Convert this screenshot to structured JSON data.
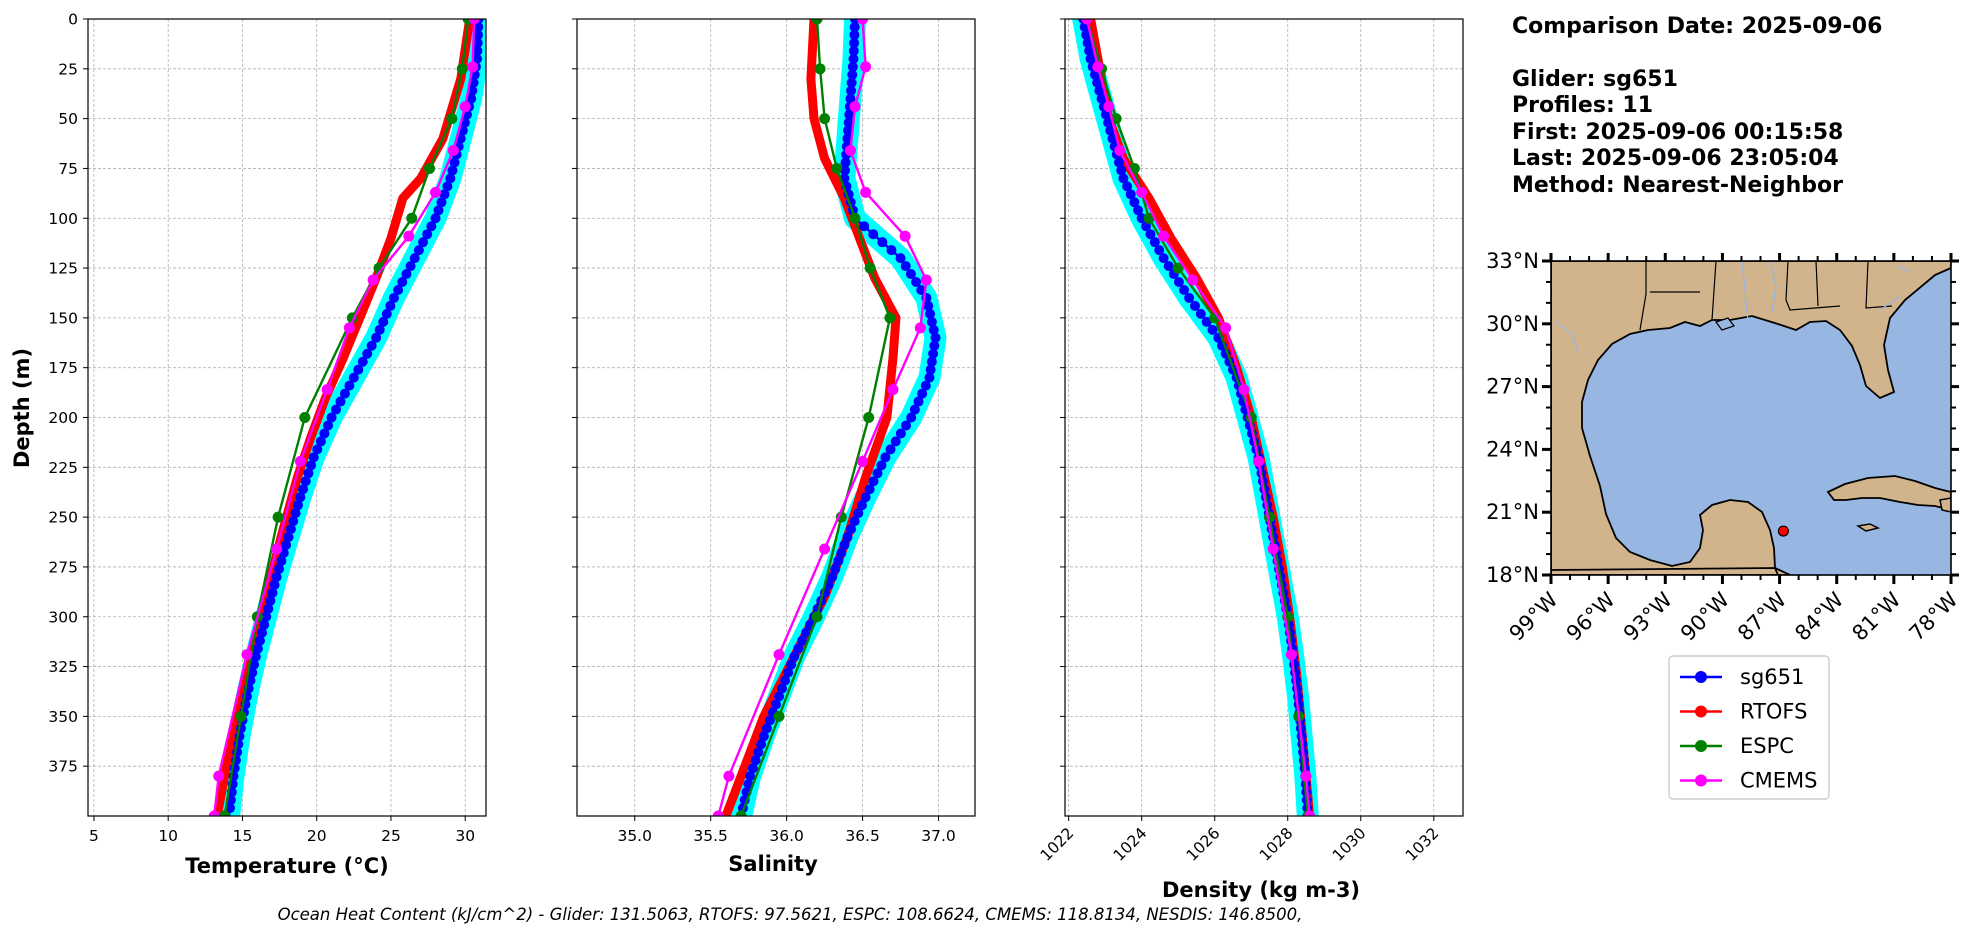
{
  "depth_axis": {
    "label": "Depth (m)",
    "ticks": [
      0,
      25,
      50,
      75,
      100,
      125,
      150,
      175,
      200,
      225,
      250,
      275,
      300,
      325,
      350,
      375
    ],
    "range": [
      0,
      400
    ]
  },
  "info": {
    "comparison_date": "Comparison Date: 2025-09-06",
    "glider": "Glider: sg651",
    "profiles": "Profiles: 11",
    "first": "First: 2025-09-06 00:15:58",
    "last": "Last: 2025-09-06 23:05:04",
    "method": "Method: Nearest-Neighbor"
  },
  "colors": {
    "glider": "#0000ff",
    "glider_band": "#00ffff",
    "rtofs": "#ff0000",
    "espc": "#008000",
    "cmems": "#ff00ff",
    "grid": "#b0b0b0",
    "land": "#d2b48c",
    "ocean": "#97b6e1"
  },
  "chart_data": [
    {
      "type": "line",
      "panel": "temperature",
      "xlabel": "Temperature (°C)",
      "ylabel": "Depth (m)",
      "xlim": [
        4.6,
        31.4
      ],
      "xticks": [
        5,
        10,
        15,
        20,
        25,
        30
      ],
      "ylim": [
        400,
        0
      ],
      "grid": true,
      "series": [
        {
          "name": "sg651",
          "depth": [
            0,
            20,
            40,
            60,
            80,
            100,
            120,
            140,
            160,
            180,
            200,
            220,
            240,
            260,
            280,
            300,
            320,
            340,
            360,
            380,
            400
          ],
          "values": [
            30.9,
            30.8,
            30.4,
            29.7,
            29.0,
            28.0,
            26.6,
            25.2,
            24.0,
            22.5,
            21.0,
            19.8,
            18.9,
            18.1,
            17.3,
            16.6,
            15.9,
            15.3,
            14.8,
            14.4,
            14.1
          ]
        },
        {
          "name": "RTOFS",
          "depth": [
            0,
            30,
            60,
            80,
            90,
            110,
            130,
            150,
            170,
            190,
            210,
            230,
            260,
            290,
            320,
            350,
            380,
            400
          ],
          "values": [
            30.3,
            29.7,
            28.5,
            27.0,
            25.8,
            25.0,
            24.0,
            22.9,
            21.8,
            20.6,
            19.6,
            18.7,
            17.6,
            16.6,
            15.6,
            14.6,
            13.8,
            13.3
          ]
        },
        {
          "name": "ESPC",
          "depth": [
            0,
            25,
            50,
            75,
            100,
            125,
            150,
            200,
            250,
            300,
            350,
            400
          ],
          "values": [
            30.2,
            29.8,
            29.1,
            27.6,
            26.4,
            24.2,
            22.4,
            19.2,
            17.4,
            16.0,
            14.9,
            13.8
          ]
        },
        {
          "name": "CMEMS",
          "depth": [
            0,
            24,
            44,
            66,
            87,
            109,
            131,
            155,
            186,
            222,
            266,
            319,
            380,
            400
          ],
          "values": [
            30.6,
            30.5,
            30.0,
            29.2,
            28.0,
            26.2,
            23.8,
            22.2,
            20.7,
            18.9,
            17.3,
            15.3,
            13.4,
            13.1
          ]
        }
      ]
    },
    {
      "type": "line",
      "panel": "salinity",
      "xlabel": "Salinity",
      "xlim": [
        34.62,
        37.24
      ],
      "xticks": [
        "35.0",
        "35.5",
        "36.0",
        "36.5",
        "37.0"
      ],
      "ylim": [
        400,
        0
      ],
      "grid": true,
      "series": [
        {
          "name": "sg651",
          "depth": [
            0,
            20,
            40,
            60,
            80,
            100,
            120,
            140,
            160,
            180,
            200,
            220,
            240,
            260,
            280,
            300,
            320,
            340,
            360,
            380,
            400
          ],
          "values": [
            36.45,
            36.44,
            36.42,
            36.4,
            36.38,
            36.45,
            36.75,
            36.92,
            36.98,
            36.94,
            36.82,
            36.65,
            36.52,
            36.4,
            36.3,
            36.18,
            36.05,
            35.95,
            35.85,
            35.76,
            35.7
          ]
        },
        {
          "name": "RTOFS",
          "depth": [
            0,
            30,
            50,
            70,
            90,
            110,
            130,
            150,
            170,
            200,
            230,
            260,
            290,
            320,
            350,
            380,
            400
          ],
          "values": [
            36.18,
            36.16,
            36.18,
            36.25,
            36.38,
            36.48,
            36.58,
            36.72,
            36.7,
            36.66,
            36.52,
            36.4,
            36.25,
            36.05,
            35.85,
            35.7,
            35.6
          ]
        },
        {
          "name": "ESPC",
          "depth": [
            0,
            25,
            50,
            75,
            100,
            125,
            150,
            200,
            250,
            300,
            350,
            400
          ],
          "values": [
            36.2,
            36.22,
            36.25,
            36.33,
            36.45,
            36.55,
            36.68,
            36.54,
            36.36,
            36.2,
            35.95,
            35.7
          ]
        },
        {
          "name": "CMEMS",
          "depth": [
            0,
            24,
            44,
            66,
            87,
            109,
            131,
            155,
            186,
            222,
            266,
            319,
            380,
            400
          ],
          "values": [
            36.5,
            36.52,
            36.45,
            36.42,
            36.52,
            36.78,
            36.92,
            36.88,
            36.7,
            36.5,
            36.25,
            35.95,
            35.62,
            35.55
          ]
        }
      ]
    },
    {
      "type": "line",
      "panel": "density",
      "xlabel": "Density (kg m-3)",
      "xlim": [
        1021.9,
        1032.8
      ],
      "xticks": [
        1022,
        1024,
        1026,
        1028,
        1030,
        1032
      ],
      "ylim": [
        400,
        0
      ],
      "grid": true,
      "series": [
        {
          "name": "sg651",
          "depth": [
            0,
            20,
            40,
            60,
            80,
            100,
            120,
            140,
            160,
            180,
            200,
            220,
            240,
            260,
            280,
            300,
            320,
            340,
            360,
            380,
            400
          ],
          "values": [
            1022.4,
            1022.6,
            1022.9,
            1023.2,
            1023.5,
            1024.0,
            1024.6,
            1025.3,
            1026.1,
            1026.6,
            1026.9,
            1027.2,
            1027.4,
            1027.6,
            1027.8,
            1028.0,
            1028.15,
            1028.28,
            1028.38,
            1028.48,
            1028.55
          ]
        },
        {
          "name": "RTOFS",
          "depth": [
            0,
            30,
            50,
            70,
            90,
            110,
            130,
            150,
            175,
            200,
            225,
            250,
            275,
            300,
            330,
            360,
            400
          ],
          "values": [
            1022.6,
            1022.9,
            1023.1,
            1023.5,
            1024.2,
            1024.8,
            1025.5,
            1026.1,
            1026.6,
            1027.0,
            1027.3,
            1027.6,
            1027.85,
            1028.05,
            1028.25,
            1028.4,
            1028.6
          ]
        },
        {
          "name": "ESPC",
          "depth": [
            0,
            25,
            50,
            75,
            100,
            125,
            150,
            200,
            250,
            300,
            350,
            400
          ],
          "values": [
            1022.5,
            1022.9,
            1023.3,
            1023.8,
            1024.2,
            1025.0,
            1026.0,
            1027.0,
            1027.5,
            1028.0,
            1028.3,
            1028.55
          ]
        },
        {
          "name": "CMEMS",
          "depth": [
            0,
            24,
            44,
            66,
            87,
            109,
            131,
            155,
            186,
            222,
            266,
            319,
            380,
            400
          ],
          "values": [
            1022.5,
            1022.8,
            1023.1,
            1023.4,
            1024.0,
            1024.6,
            1025.4,
            1026.3,
            1026.8,
            1027.2,
            1027.6,
            1028.1,
            1028.5,
            1028.6
          ]
        }
      ]
    },
    {
      "type": "map",
      "panel": "location_map",
      "lon_range": [
        -99,
        -78
      ],
      "lat_range": [
        18,
        33
      ],
      "xticks": [
        "99°W",
        "96°W",
        "93°W",
        "90°W",
        "87°W",
        "84°W",
        "81°W",
        "78°W"
      ],
      "yticks": [
        "18°N",
        "21°N",
        "24°N",
        "27°N",
        "30°N",
        "33°N"
      ],
      "glider_position": {
        "lon": -86.8,
        "lat": 20.1
      }
    }
  ],
  "legend": {
    "items": [
      {
        "name": "sg651",
        "color": "#0000ff"
      },
      {
        "name": "RTOFS",
        "color": "#ff0000"
      },
      {
        "name": "ESPC",
        "color": "#008000"
      },
      {
        "name": "CMEMS",
        "color": "#ff00ff"
      }
    ]
  },
  "footer": "Ocean Heat Content (kJ/cm^2) - Glider: 131.5063,  RTOFS: 97.5621,  ESPC: 108.6624,  CMEMS: 118.8134,  NESDIS: 146.8500,"
}
